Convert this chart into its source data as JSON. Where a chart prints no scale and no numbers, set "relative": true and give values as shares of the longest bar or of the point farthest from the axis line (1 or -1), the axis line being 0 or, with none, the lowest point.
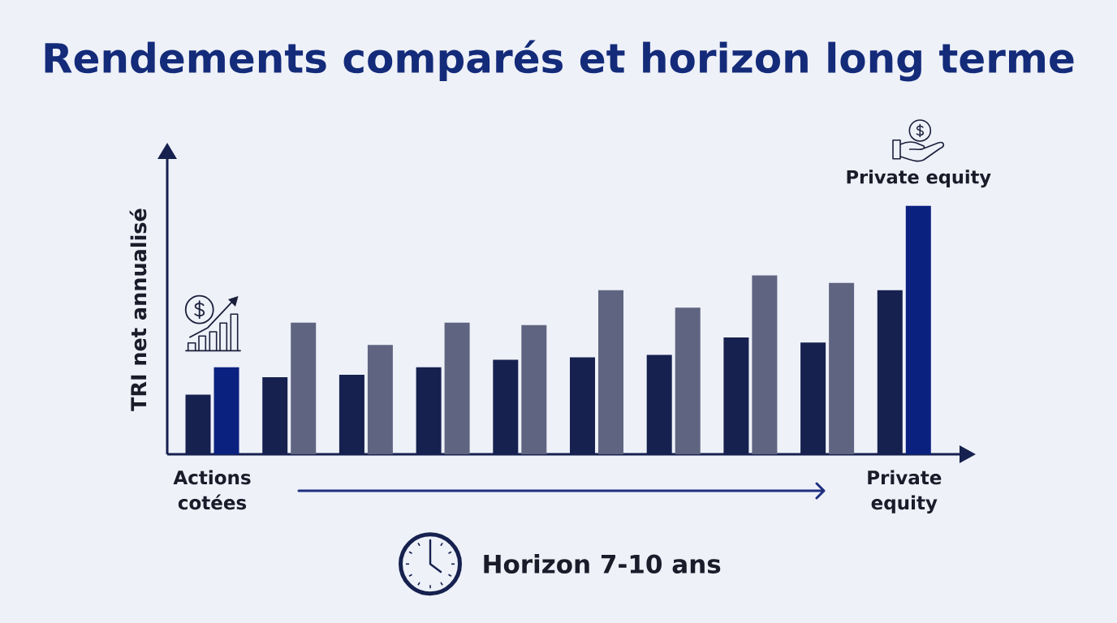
{
  "chart_data": {
    "type": "bar",
    "title": "Rendements comparés et horizon long terme",
    "ylabel": "TRI net annualisé",
    "categories": [
      "Actions cotées",
      null,
      null,
      null,
      null,
      null,
      null,
      null,
      null,
      "Private equity"
    ],
    "relative": true,
    "series": [
      {
        "color": "#16214f",
        "values": [
          0.24,
          0.31,
          0.32,
          0.35,
          0.38,
          0.39,
          0.4,
          0.47,
          0.45,
          0.66
        ]
      },
      {
        "colors": [
          "#0b2180",
          "#5f6580",
          "#5f6580",
          "#5f6580",
          "#5f6580",
          "#5f6580",
          "#5f6580",
          "#5f6580",
          "#5f6580",
          "#0b2180"
        ],
        "values": [
          0.35,
          0.53,
          0.44,
          0.53,
          0.52,
          0.66,
          0.59,
          0.72,
          0.69,
          1.0
        ]
      }
    ],
    "annotations": [
      "Private equity",
      "Horizon 7-10 ans"
    ]
  }
}
